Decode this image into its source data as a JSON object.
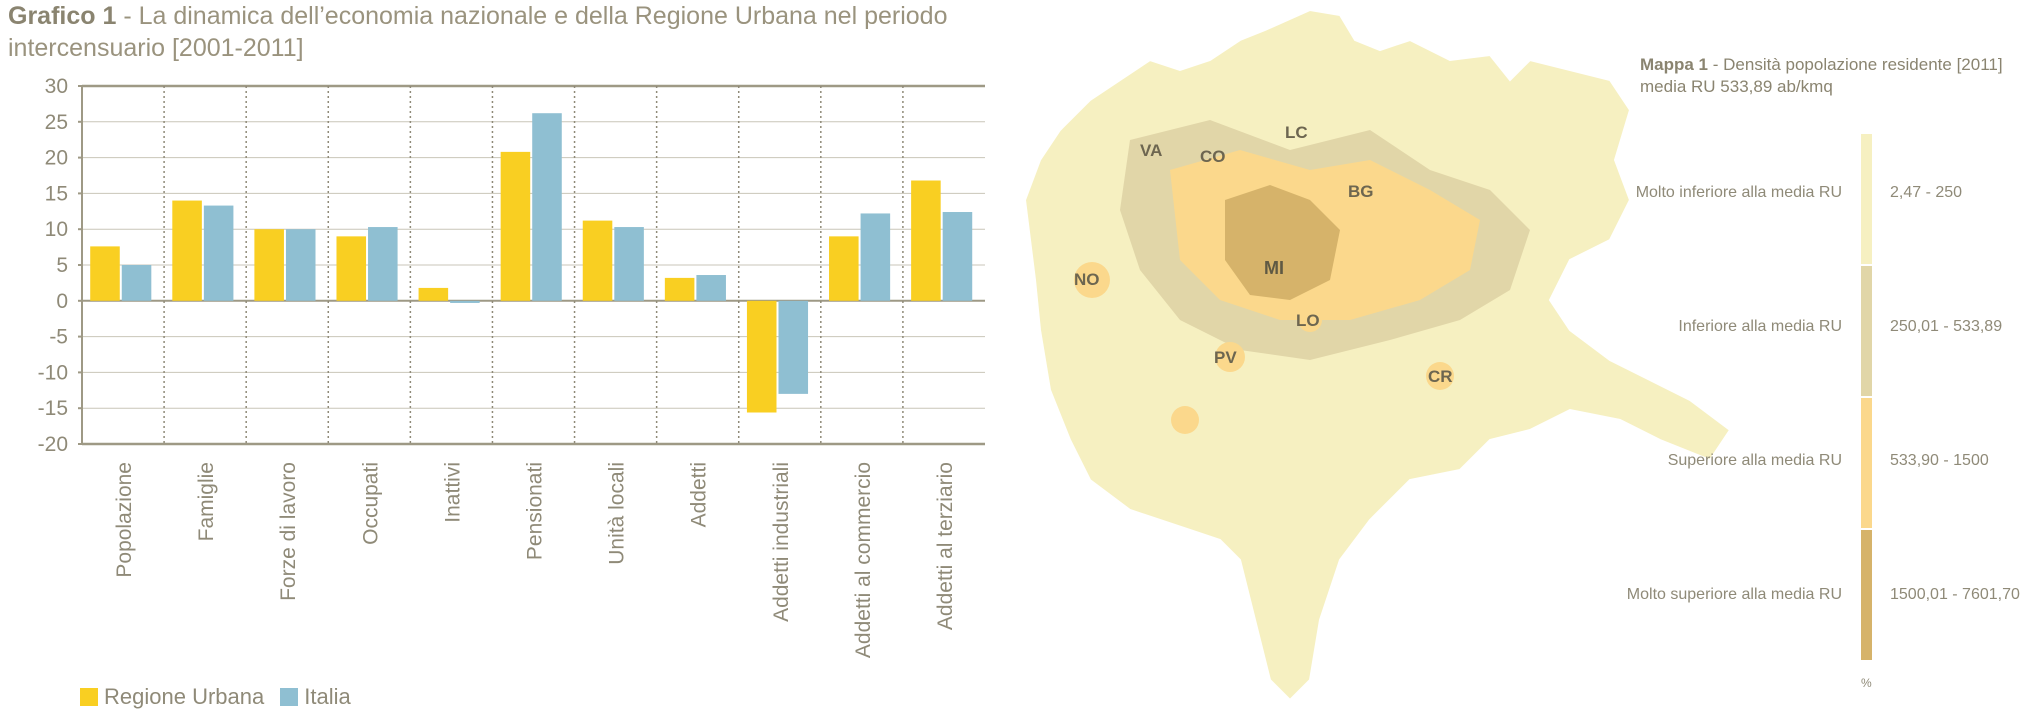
{
  "header": {
    "title_bold": "Grafico 1",
    "title_rest": " - La dinamica dell’economia nazionale e della Regione Urbana nel periodo intercensuario [2001-2011]"
  },
  "chart_data": {
    "type": "bar",
    "categories": [
      "Popolazione",
      "Famiglie",
      "Forze di lavoro",
      "Occupati",
      "Inattivi",
      "Pensionati",
      "Unità locali",
      "Addetti",
      "Addetti industriali",
      "Addetti al commercio",
      "Addetti al terziario"
    ],
    "series": [
      {
        "name": "Regione Urbana",
        "color": "#f9cf22",
        "values": [
          7.6,
          14.0,
          10.0,
          9.0,
          1.8,
          20.8,
          11.2,
          3.2,
          -15.6,
          9.0,
          16.8
        ]
      },
      {
        "name": "Italia",
        "color": "#8fbfd2",
        "values": [
          5.0,
          13.3,
          10.0,
          10.3,
          -0.3,
          26.2,
          10.3,
          3.6,
          -13.0,
          12.2,
          12.4
        ]
      }
    ],
    "ylim": [
      -20,
      30
    ],
    "yticks": [
      30,
      25,
      20,
      15,
      10,
      5,
      0,
      -5,
      -10,
      -15,
      -20
    ],
    "grid": true,
    "legend_position": "bottom-left"
  },
  "legend": {
    "item1": "Regione Urbana",
    "item2": "Italia"
  },
  "map": {
    "title_bold": "Mappa 1",
    "title_rest": " - Densità popolazione residente [2011]",
    "subtitle": "media RU 533,89 ab/kmq",
    "city_labels": [
      "VA",
      "CO",
      "LC",
      "BG",
      "NO",
      "MI",
      "LO",
      "PV",
      "CR"
    ],
    "scale": [
      {
        "label": "Molto inferiore alla media RU",
        "range": "2,47 - 250",
        "color": "#f6f0c1"
      },
      {
        "label": "Inferiore alla media RU",
        "range": "250,01 - 533,89",
        "color": "#e1d6a8"
      },
      {
        "label": "Superiore alla media RU",
        "range": "533,90 - 1500",
        "color": "#fbd88c"
      },
      {
        "label": "Molto superiore alla media RU",
        "range": "1500,01 - 7601,70",
        "color": "#d6b36a"
      }
    ],
    "percent_label": "%"
  }
}
